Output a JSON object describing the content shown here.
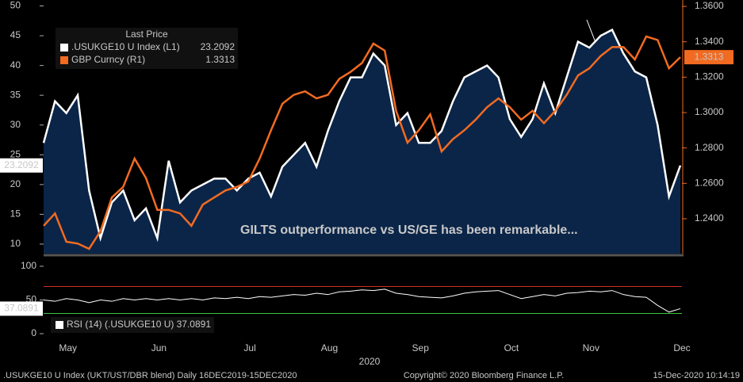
{
  "chart_data": [
    {
      "type": "line",
      "annotation": "GILTS outperformance vs US/GE has been remarkable...",
      "legend_title": "Last Price",
      "ylim": [
        8.4,
        51
      ],
      "yticks": [
        10,
        15,
        20,
        25,
        30,
        35,
        40,
        45,
        50
      ],
      "y2lim": [
        1.2203,
        1.3636
      ],
      "y2ticks": [
        {
          "value": 1.24,
          "label": "1.2400"
        },
        {
          "value": 1.26,
          "label": "1.2600"
        },
        {
          "value": 1.28,
          "label": "1.2800"
        },
        {
          "value": 1.3,
          "label": "1.3000"
        },
        {
          "value": 1.32,
          "label": "1.3200"
        },
        {
          "value": 1.34,
          "label": "1.3400"
        },
        {
          "value": 1.36,
          "label": "1.3600"
        }
      ],
      "series": [
        {
          "name": ".USUKGE10 U Index  (L1)",
          "color": "#ffffff",
          "fill": "#0b2548",
          "values": [
            27,
            34,
            32,
            35,
            19,
            11,
            17,
            19,
            14,
            16,
            11,
            24,
            17,
            19,
            20,
            21,
            21,
            19,
            21,
            22,
            18,
            23,
            25,
            27,
            23,
            29,
            34,
            38,
            38,
            42,
            40,
            30,
            32,
            27,
            27,
            29,
            34,
            38,
            39,
            40,
            38,
            31,
            28,
            31,
            37,
            32,
            38,
            44,
            43,
            45,
            46,
            42,
            39,
            38,
            30,
            18,
            23.2092
          ]
        },
        {
          "name": "GBP Curncy  (R1)",
          "color": "#f26b21",
          "axis": "y2",
          "values": [
            1.236,
            1.243,
            1.227,
            1.226,
            1.223,
            1.233,
            1.252,
            1.258,
            1.274,
            1.263,
            1.245,
            1.245,
            1.243,
            1.236,
            1.248,
            1.252,
            1.256,
            1.258,
            1.261,
            1.274,
            1.29,
            1.305,
            1.31,
            1.312,
            1.308,
            1.31,
            1.319,
            1.323,
            1.328,
            1.339,
            1.335,
            1.301,
            1.283,
            1.29,
            1.299,
            1.278,
            1.285,
            1.29,
            1.296,
            1.303,
            1.308,
            1.303,
            1.296,
            1.301,
            1.294,
            1.301,
            1.31,
            1.321,
            1.325,
            1.332,
            1.337,
            1.337,
            1.33,
            1.343,
            1.341,
            1.325,
            1.3313
          ]
        }
      ]
    },
    {
      "type": "line",
      "x_label": "2020",
      "categories": [
        null,
        null,
        "May",
        null,
        null,
        null,
        null,
        null,
        null,
        null,
        "Jun",
        null,
        null,
        null,
        null,
        null,
        null,
        null,
        "Jul",
        null,
        null,
        null,
        null,
        null,
        null,
        "Aug",
        null,
        null,
        null,
        null,
        null,
        null,
        null,
        "Sep",
        null,
        null,
        null,
        null,
        null,
        null,
        null,
        "Oct",
        null,
        null,
        null,
        null,
        null,
        null,
        "Nov",
        null,
        null,
        null,
        null,
        null,
        null,
        null,
        "Dec"
      ],
      "ylim": [
        -10.6,
        112.9
      ],
      "yticks": [
        0,
        50,
        100
      ],
      "hlines": [
        {
          "value": 70,
          "color": "#d0302a"
        },
        {
          "value": 30,
          "color": "#3cc43c"
        }
      ],
      "series": [
        {
          "name": "RSI (14) (.USUKGE10 U)",
          "color": "#ffffff",
          "values": [
            50,
            48,
            52,
            50,
            46,
            50,
            48,
            52,
            50,
            52,
            50,
            52,
            50,
            52,
            50,
            53,
            52,
            54,
            52,
            55,
            54,
            56,
            58,
            57,
            60,
            58,
            62,
            63,
            65,
            64,
            66,
            60,
            58,
            55,
            54,
            53,
            56,
            60,
            62,
            63,
            64,
            58,
            52,
            55,
            58,
            56,
            60,
            61,
            63,
            62,
            64,
            58,
            55,
            54,
            42,
            32,
            37.0891
          ]
        }
      ]
    }
  ],
  "footer": {
    "left": ".USUKGE10 U Index (UKT/UST/DBR blend)  Daily 16DEC2019-15DEC2020",
    "center": "Copyright© 2020 Bloomberg Finance L.P.",
    "right": "15-Dec-2020 10:14:19"
  }
}
